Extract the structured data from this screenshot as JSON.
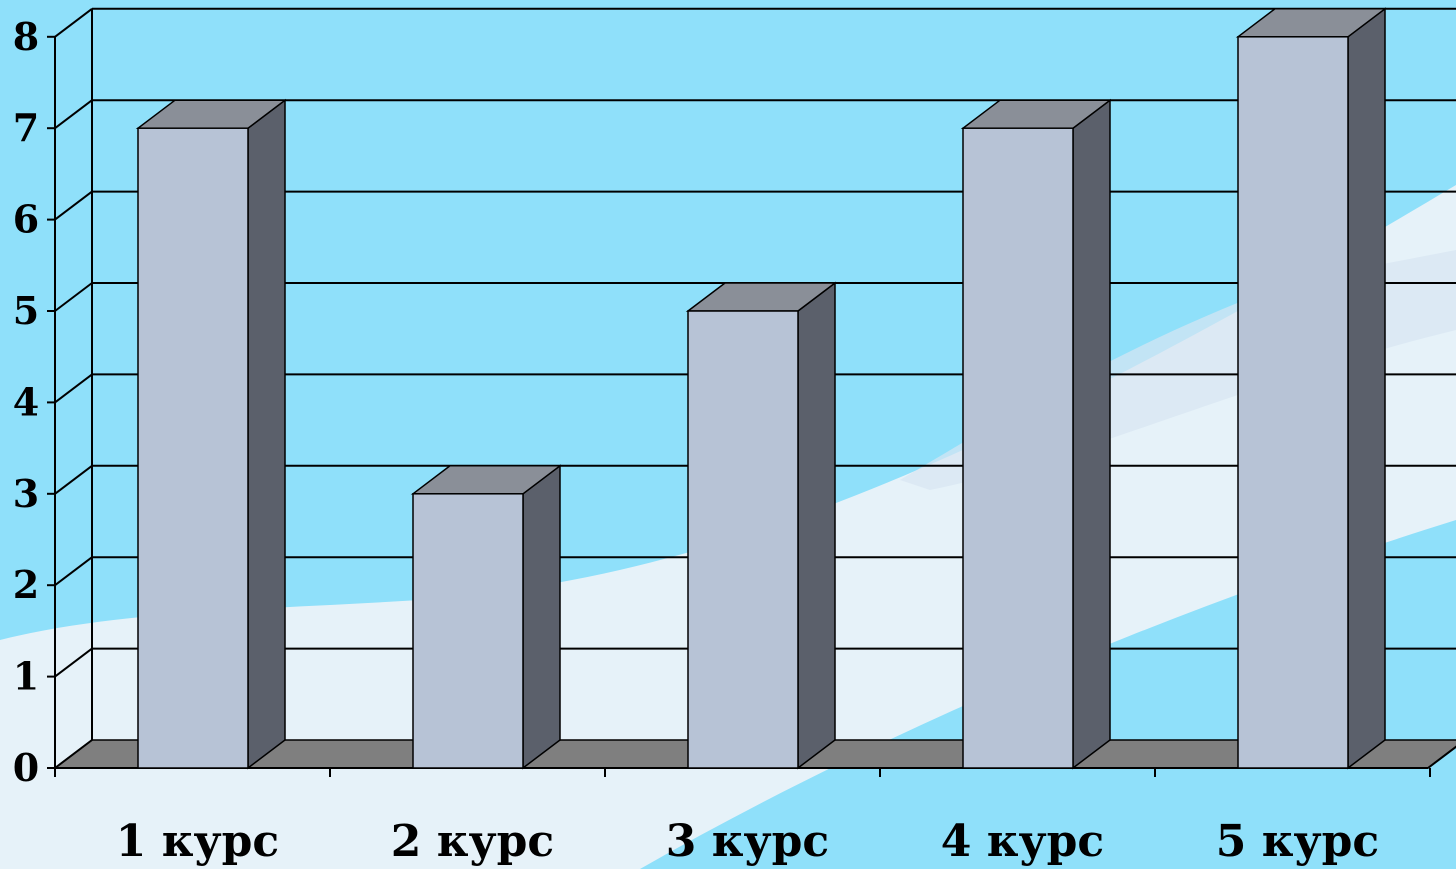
{
  "colors": {
    "background": "#8fe0fa",
    "wall": "#8fe0fa",
    "floor": "#7f7f7f",
    "bar_front": "#b7c3d6",
    "bar_side": "#5b606b",
    "bar_top": "#8a8f98",
    "grid": "#000000",
    "decoration": "#eef3f9"
  },
  "chart_data": {
    "type": "bar",
    "style": "3d-column",
    "categories": [
      "1 курс",
      "2 курс",
      "3 курс",
      "4 курс",
      "5 курс"
    ],
    "values": [
      7,
      3,
      5,
      7,
      8
    ],
    "ylim": [
      0,
      8
    ],
    "yticks": [
      "0",
      "1",
      "2",
      "3",
      "4",
      "5",
      "6",
      "7",
      "8"
    ],
    "grid": true,
    "legend": "none"
  }
}
